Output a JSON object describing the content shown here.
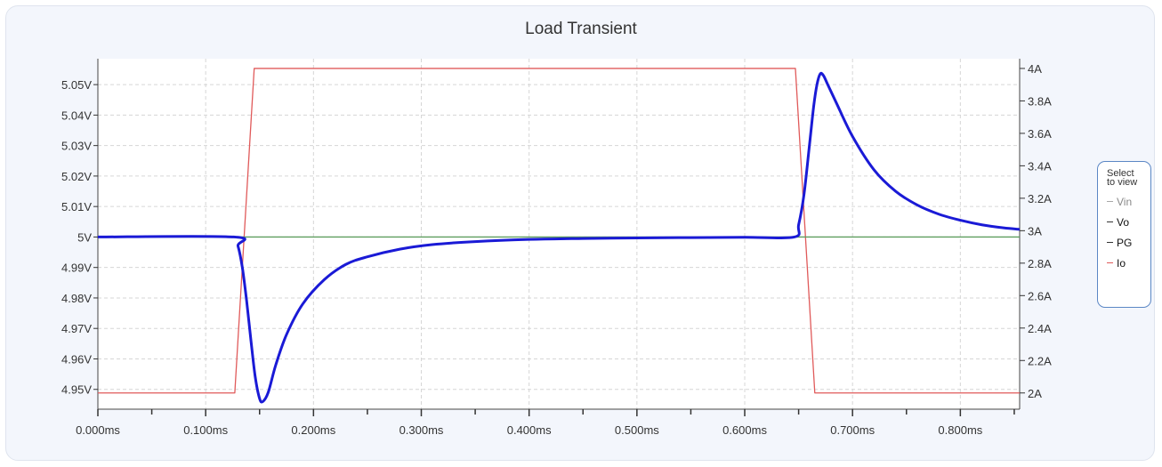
{
  "title": "Load Transient",
  "legend": {
    "title_line1": "Select",
    "title_line2": "to view",
    "items": [
      {
        "label": "Vin",
        "color": "#a8a8a8",
        "text_color": "#8a8a8a",
        "visible": false
      },
      {
        "label": "Vo",
        "color": "#333333",
        "text_color": "#111111",
        "visible": true
      },
      {
        "label": "PG",
        "color": "#333333",
        "text_color": "#111111",
        "visible": true
      },
      {
        "label": "Io",
        "color": "#e05a5a",
        "text_color": "#111111",
        "visible": true
      }
    ]
  },
  "chart_data": {
    "type": "line",
    "title": "Load Transient",
    "xlim": [
      0,
      0.855
    ],
    "x_ticks": [
      0,
      0.1,
      0.2,
      0.3,
      0.4,
      0.5,
      0.6,
      0.7,
      0.8
    ],
    "x_tick_labels": [
      "0.000ms",
      "0.100ms",
      "0.200ms",
      "0.300ms",
      "0.400ms",
      "0.500ms",
      "0.600ms",
      "0.700ms",
      "0.800ms"
    ],
    "y_left": {
      "ylim": [
        4.9435,
        5.0585
      ],
      "ticks": [
        4.95,
        4.96,
        4.97,
        4.98,
        4.99,
        5.0,
        5.01,
        5.02,
        5.03,
        5.04,
        5.05
      ],
      "tick_labels": [
        "4.95V",
        "4.96V",
        "4.97V",
        "4.98V",
        "4.99V",
        "5V",
        "5.01V",
        "5.02V",
        "5.03V",
        "5.04V",
        "5.05V"
      ]
    },
    "y_right": {
      "ylim": [
        1.9,
        4.06
      ],
      "ticks": [
        2.0,
        2.2,
        2.4,
        2.6,
        2.8,
        3.0,
        3.2,
        3.4,
        3.6,
        3.8,
        4.0
      ],
      "tick_labels": [
        "2A",
        "2.2A",
        "2.4A",
        "2.6A",
        "2.8A",
        "3A",
        "3.2A",
        "3.4A",
        "3.6A",
        "3.8A",
        "4A"
      ]
    },
    "grid": true,
    "series": [
      {
        "name": "Vo",
        "axis": "left",
        "color": "#1a1ad6",
        "x": [
          0,
          0.126,
          0.13,
          0.134,
          0.138,
          0.142,
          0.146,
          0.15,
          0.153,
          0.158,
          0.165,
          0.175,
          0.19,
          0.21,
          0.23,
          0.25,
          0.28,
          0.31,
          0.35,
          0.4,
          0.45,
          0.5,
          0.55,
          0.6,
          0.646,
          0.65,
          0.655,
          0.66,
          0.664,
          0.667,
          0.67,
          0.673,
          0.677,
          0.685,
          0.7,
          0.72,
          0.74,
          0.76,
          0.78,
          0.8,
          0.82,
          0.84,
          0.855
        ],
        "y": [
          5.0,
          5.0,
          4.997,
          4.99,
          4.979,
          4.966,
          4.954,
          4.947,
          4.946,
          4.949,
          4.958,
          4.968,
          4.978,
          4.986,
          4.991,
          4.9935,
          4.996,
          4.9975,
          4.9985,
          4.9992,
          4.9995,
          4.9997,
          4.9998,
          4.9999,
          5.0,
          5.004,
          5.014,
          5.03,
          5.043,
          5.05,
          5.0535,
          5.053,
          5.05,
          5.044,
          5.033,
          5.022,
          5.015,
          5.0105,
          5.0075,
          5.0055,
          5.004,
          5.003,
          5.0025
        ]
      },
      {
        "name": "PG",
        "axis": "left",
        "color": "#5f9e5f",
        "x": [
          0,
          0.855
        ],
        "y": [
          5.0,
          5.0
        ]
      },
      {
        "name": "Io",
        "axis": "right",
        "color": "#e05a5a",
        "x": [
          0,
          0.127,
          0.145,
          0.647,
          0.665,
          0.855
        ],
        "y": [
          2.0,
          2.0,
          4.0,
          4.0,
          2.0,
          2.0
        ]
      }
    ]
  }
}
